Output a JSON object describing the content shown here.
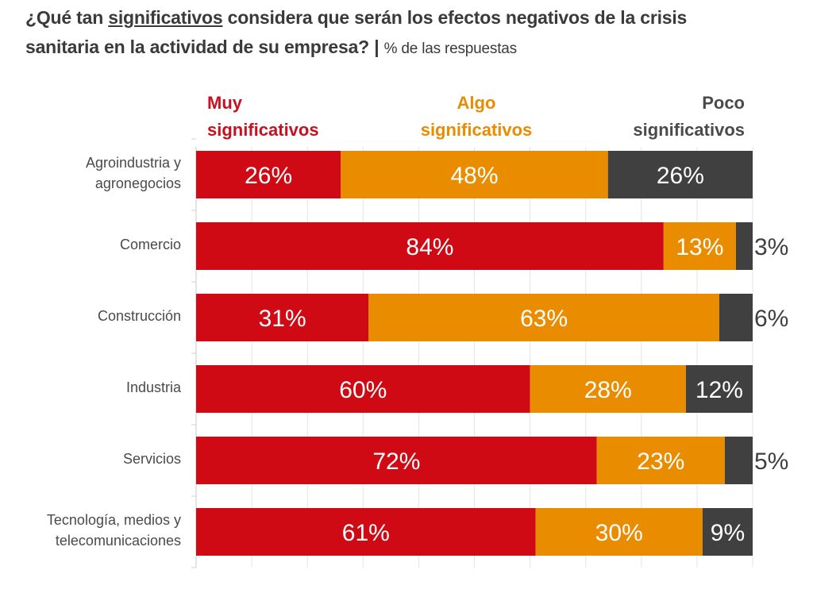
{
  "title": {
    "pre": "¿Qué tan ",
    "underlined": "significativos",
    "post": " considera que serán los efectos negativos de la crisis",
    "line2": "sanitaria en la actividad de su empresa? | ",
    "subtitle": "% de las respuestas"
  },
  "legend": [
    {
      "line1": "Muy",
      "line2": "significativos",
      "color": "#c8101e"
    },
    {
      "line1": "Algo",
      "line2": "significativos",
      "color": "#ea8c00"
    },
    {
      "line1": "Poco",
      "line2": "significativos",
      "color": "#4a4a4a"
    }
  ],
  "chart_data": {
    "type": "bar",
    "orientation": "horizontal",
    "stacked": true,
    "title": "¿Qué tan significativos considera que serán los efectos negativos de la crisis sanitaria en la actividad de su empresa? | % de las respuestas",
    "xlim": [
      0,
      100
    ],
    "grid": true,
    "legend_position": "top",
    "categories": [
      "Agroindustria y agronegocios",
      "Comercio",
      "Construcción",
      "Industria",
      "Servicios",
      "Tecnología, medios y telecomunicaciones"
    ],
    "category_lines": [
      [
        "Agroindustria y",
        "agronegocios"
      ],
      [
        "Comercio"
      ],
      [
        "Construcción"
      ],
      [
        "Industria"
      ],
      [
        "Servicios"
      ],
      [
        "Tecnología, medios y",
        "telecomunicaciones"
      ]
    ],
    "series": [
      {
        "name": "Muy significativos",
        "color": "#cf0a14",
        "values": [
          26,
          84,
          31,
          60,
          72,
          61
        ]
      },
      {
        "name": "Algo significativos",
        "color": "#ea8c00",
        "values": [
          48,
          13,
          63,
          28,
          23,
          30
        ]
      },
      {
        "name": "Poco significativos",
        "color": "#404040",
        "values": [
          26,
          3,
          6,
          12,
          5,
          9
        ]
      }
    ],
    "label_suffix": "%"
  }
}
